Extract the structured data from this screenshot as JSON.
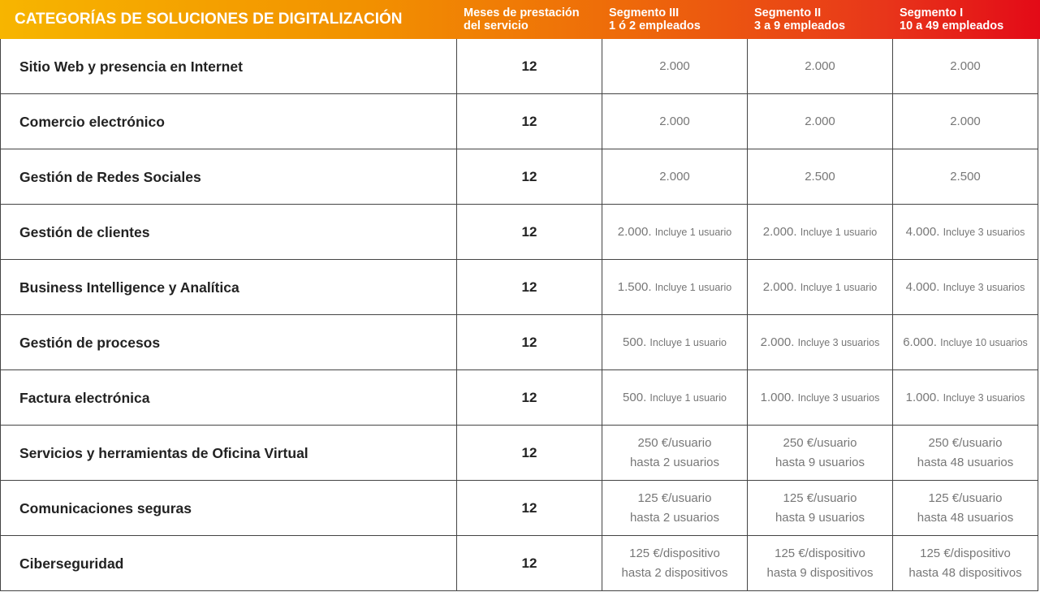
{
  "table": {
    "header": [
      {
        "lines": [
          "CATEGORÍAS DE SOLUCIONES DE DIGITALIZACIÓN"
        ]
      },
      {
        "lines": [
          "Meses de prestación",
          "del servicio"
        ]
      },
      {
        "lines": [
          "Segmento III",
          "1 ó 2 empleados"
        ]
      },
      {
        "lines": [
          "Segmento II",
          "3 a 9 empleados"
        ]
      },
      {
        "lines": [
          "Segmento I",
          "10 a 49 empleados"
        ]
      }
    ],
    "rows": [
      [
        "Sitio Web y presencia en Internet",
        12,
        {
          "lines": [
            "2.000"
          ]
        },
        {
          "lines": [
            "2.000"
          ]
        },
        {
          "lines": [
            "2.000"
          ]
        }
      ],
      [
        "Comercio electrónico",
        12,
        {
          "lines": [
            "2.000"
          ]
        },
        {
          "lines": [
            "2.000"
          ]
        },
        {
          "lines": [
            "2.000"
          ]
        }
      ],
      [
        "Gestión de Redes Sociales",
        12,
        {
          "lines": [
            "2.000"
          ]
        },
        {
          "lines": [
            "2.500"
          ]
        },
        {
          "lines": [
            "2.500"
          ]
        }
      ],
      [
        "Gestión de clientes",
        12,
        {
          "amount": "2.000.",
          "note": "Incluye 1 usuario"
        },
        {
          "amount": "2.000.",
          "note": "Incluye 1 usuario"
        },
        {
          "amount": "4.000.",
          "note": "Incluye 3 usuarios"
        }
      ],
      [
        "Business Intelligence y Analítica",
        12,
        {
          "amount": "1.500.",
          "note": "Incluye 1 usuario"
        },
        {
          "amount": "2.000.",
          "note": "Incluye 1 usuario"
        },
        {
          "amount": "4.000.",
          "note": "Incluye 3 usuarios"
        }
      ],
      [
        "Gestión de procesos",
        12,
        {
          "amount": "500.",
          "note": "Incluye 1 usuario"
        },
        {
          "amount": "2.000.",
          "note": "Incluye 3 usuarios"
        },
        {
          "amount": "6.000.",
          "note": "Incluye 10 usuarios"
        }
      ],
      [
        "Factura electrónica",
        12,
        {
          "amount": "500.",
          "note": "Incluye 1 usuario"
        },
        {
          "amount": "1.000.",
          "note": "Incluye 3 usuarios"
        },
        {
          "amount": "1.000.",
          "note": "Incluye 3 usuarios"
        }
      ],
      [
        "Servicios y herramientas de Oficina Virtual",
        12,
        {
          "lines": [
            "250 €/usuario",
            "hasta 2 usuarios"
          ]
        },
        {
          "lines": [
            "250 €/usuario",
            "hasta 9 usuarios"
          ]
        },
        {
          "lines": [
            "250 €/usuario",
            "hasta 48 usuarios"
          ]
        }
      ],
      [
        "Comunicaciones seguras",
        12,
        {
          "lines": [
            "125 €/usuario",
            "hasta 2 usuarios"
          ]
        },
        {
          "lines": [
            "125 €/usuario",
            "hasta 9 usuarios"
          ]
        },
        {
          "lines": [
            "125 €/usuario",
            "hasta 48 usuarios"
          ]
        }
      ],
      [
        "Ciberseguridad",
        12,
        {
          "lines": [
            "125 €/dispositivo",
            "hasta 2 dispositivos"
          ]
        },
        {
          "lines": [
            "125 €/dispositivo",
            "hasta 9 dispositivos"
          ]
        },
        {
          "lines": [
            "125 €/dispositivo",
            "hasta 48 dispositivos"
          ]
        }
      ]
    ]
  }
}
